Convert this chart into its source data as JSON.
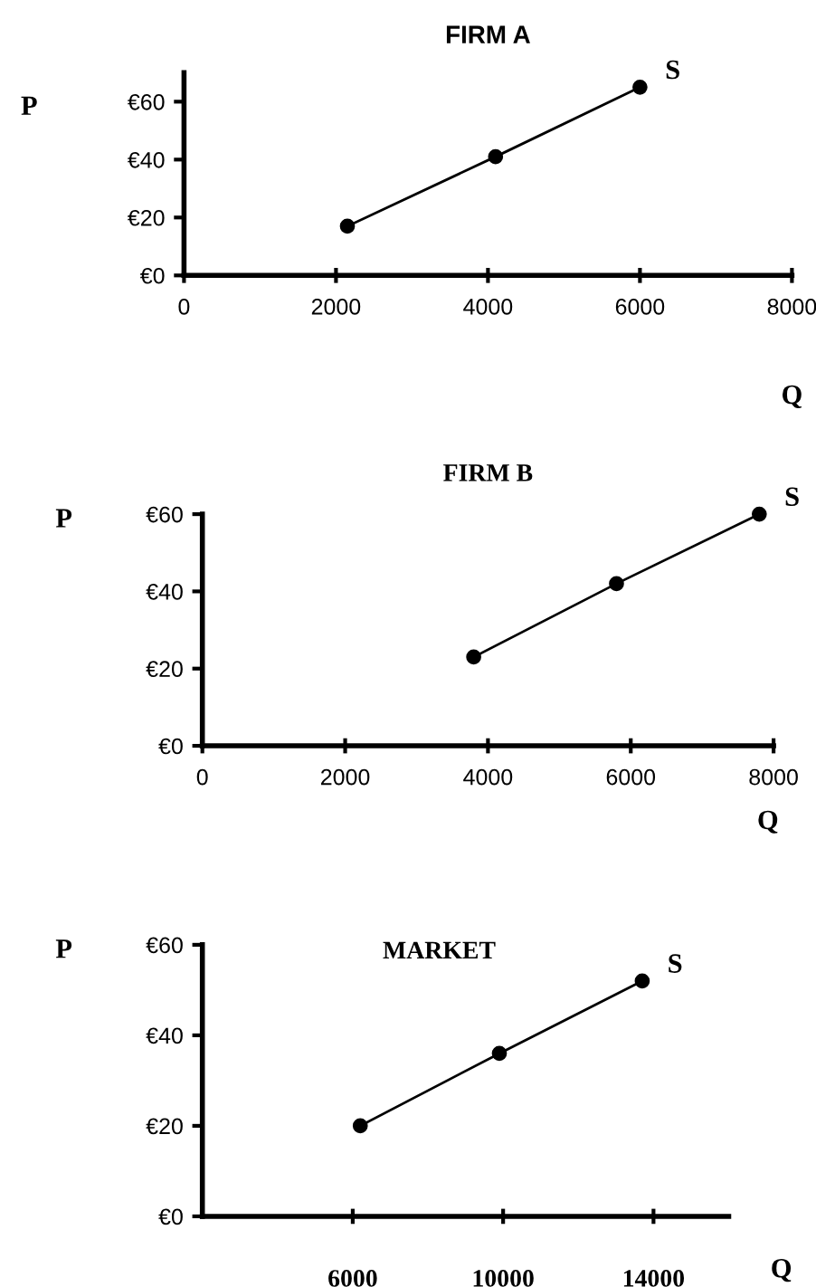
{
  "chart_data": [
    {
      "type": "line",
      "title": "FIRM A",
      "xlabel": "Q",
      "ylabel": "P",
      "x": [
        2150,
        4100,
        6000
      ],
      "values": [
        17,
        41,
        65
      ],
      "color": "#000000",
      "marker": "circle",
      "line_style": "solid",
      "xlim": [
        0,
        8000
      ],
      "xticks": [
        0,
        2000,
        4000,
        6000,
        8000
      ],
      "ylim": [
        0,
        70
      ],
      "yticks": [
        {
          "value": 0,
          "label": "€0"
        },
        {
          "value": 20,
          "label": "€20"
        },
        {
          "value": 40,
          "label": "€40"
        },
        {
          "value": 60,
          "label": "€60"
        }
      ],
      "annotations": [
        {
          "text": "S",
          "x": 6000,
          "y": 65
        }
      ]
    },
    {
      "type": "line",
      "title": "FIRM B",
      "xlabel": "Q",
      "ylabel": "P",
      "x": [
        3800,
        5800,
        7800
      ],
      "values": [
        23,
        42,
        60
      ],
      "color": "#000000",
      "marker": "circle",
      "line_style": "solid",
      "xlim": [
        0,
        8000
      ],
      "xticks": [
        0,
        2000,
        4000,
        6000,
        8000
      ],
      "ylim": [
        0,
        60
      ],
      "yticks": [
        {
          "value": 0,
          "label": "€0"
        },
        {
          "value": 20,
          "label": "€20"
        },
        {
          "value": 40,
          "label": "€40"
        },
        {
          "value": 60,
          "label": "€60"
        }
      ],
      "annotations": [
        {
          "text": "S",
          "x": 7800,
          "y": 60
        }
      ]
    },
    {
      "type": "line",
      "title": "MARKET",
      "xlabel": "Q",
      "ylabel": "P",
      "x": [
        6200,
        9900,
        13700
      ],
      "values": [
        20,
        36,
        52
      ],
      "color": "#000000",
      "marker": "circle",
      "line_style": "solid",
      "xlim": [
        2000,
        16000
      ],
      "xticks": [
        6000,
        10000,
        14000
      ],
      "ylim": [
        0,
        60
      ],
      "yticks": [
        {
          "value": 0,
          "label": "€0"
        },
        {
          "value": 20,
          "label": "€20"
        },
        {
          "value": 40,
          "label": "€40"
        },
        {
          "value": 60,
          "label": "€60"
        }
      ],
      "annotations": [
        {
          "text": "S",
          "x": 13700,
          "y": 52
        }
      ]
    }
  ]
}
